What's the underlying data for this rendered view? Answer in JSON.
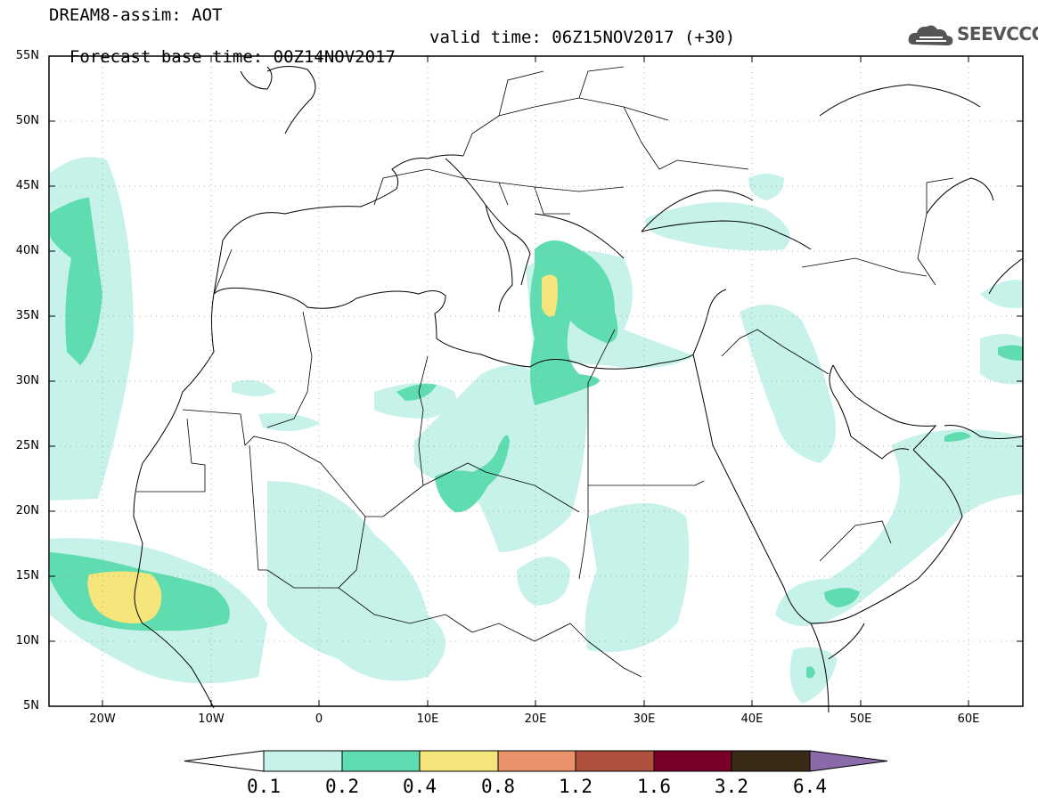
{
  "header": {
    "title": "DREAM8-assim: AOT",
    "forecast_base": "Forecast base time: 00Z14NOV2017",
    "valid_time": "valid time: 06Z15NOV2017 (+30)",
    "logo_text": "SEEVCCC"
  },
  "map": {
    "projection": "lat-lon",
    "lon_range": [
      -25,
      65
    ],
    "lat_range": [
      5,
      55
    ],
    "lat_labels": [
      "55N",
      "50N",
      "45N",
      "40N",
      "35N",
      "30N",
      "25N",
      "20N",
      "15N",
      "10N",
      "5N"
    ],
    "lon_labels": [
      "20W",
      "10W",
      "0",
      "10E",
      "20E",
      "30E",
      "40E",
      "50E",
      "60E"
    ],
    "grid": "dotted"
  },
  "legend": {
    "labels": [
      "0.1",
      "0.2",
      "0.4",
      "0.8",
      "1.2",
      "1.6",
      "3.2",
      "6.4"
    ],
    "colors": [
      "#ffffff",
      "#c6f2ea",
      "#5fdcb0",
      "#f5e57a",
      "#e8936a",
      "#b0503f",
      "#7a0028",
      "#3a2a18",
      "#8a6aa8"
    ]
  }
}
